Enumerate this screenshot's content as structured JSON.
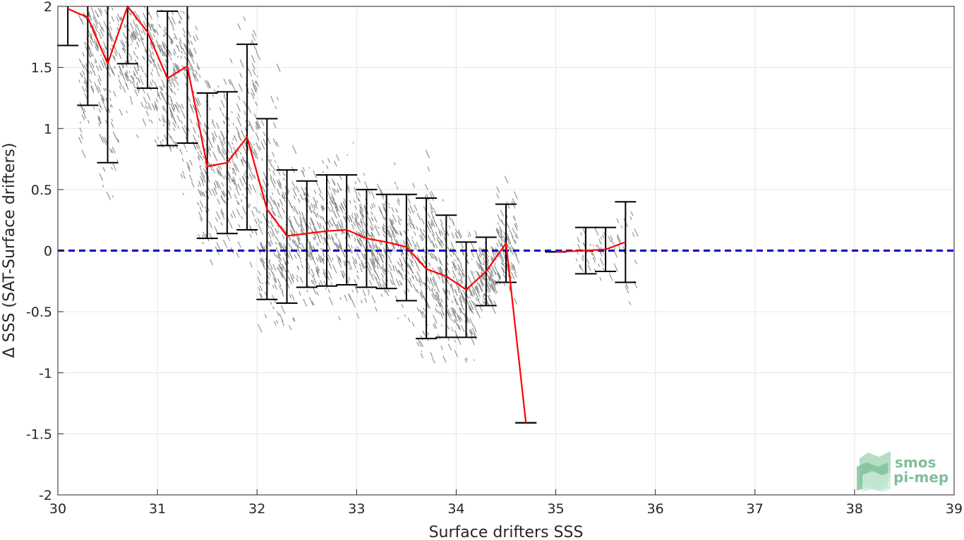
{
  "chart_data": {
    "type": "scatter",
    "title": "",
    "xlabel": "Surface drifters SSS",
    "ylabel": "Δ SSS (SAT-Surface drifters)",
    "xlim": [
      30,
      39
    ],
    "ylim": [
      -2,
      2
    ],
    "xticks": [
      "30",
      "31",
      "32",
      "33",
      "34",
      "35",
      "36",
      "37",
      "38",
      "39"
    ],
    "yticks": [
      "-2",
      "-1.5",
      "-1",
      "-0.5",
      "0",
      "0.5",
      "1",
      "1.5",
      "2"
    ],
    "grid": true,
    "zero_line": {
      "y": 0,
      "color": "#0000cc",
      "style": "dashed"
    },
    "scatter_color": "#8c8c8c",
    "series": [
      {
        "type": "line-errorbar",
        "color": "#ff0000",
        "errorbar_color": "#000000",
        "segments": [
          [
            {
              "x": 30.1,
              "y": 1.98,
              "lo": 1.68,
              "hi": 2.5
            },
            {
              "x": 30.3,
              "y": 1.91,
              "lo": 1.19,
              "hi": 2.5
            },
            {
              "x": 30.5,
              "y": 1.53,
              "lo": 0.72,
              "hi": 2.5
            },
            {
              "x": 30.7,
              "y": 2.02,
              "lo": 1.53,
              "hi": 2.5
            },
            {
              "x": 30.9,
              "y": 1.79,
              "lo": 1.33,
              "hi": 2.5
            },
            {
              "x": 31.1,
              "y": 1.41,
              "lo": 0.86,
              "hi": 1.96
            },
            {
              "x": 31.3,
              "y": 1.51,
              "lo": 0.88,
              "hi": 2.5
            },
            {
              "x": 31.5,
              "y": 0.69,
              "lo": 0.1,
              "hi": 1.29
            },
            {
              "x": 31.7,
              "y": 0.72,
              "lo": 0.14,
              "hi": 1.3
            },
            {
              "x": 31.9,
              "y": 0.93,
              "lo": 0.17,
              "hi": 1.69
            },
            {
              "x": 32.1,
              "y": 0.34,
              "lo": -0.4,
              "hi": 1.08
            },
            {
              "x": 32.3,
              "y": 0.12,
              "lo": -0.43,
              "hi": 0.66
            },
            {
              "x": 32.5,
              "y": 0.14,
              "lo": -0.3,
              "hi": 0.57
            },
            {
              "x": 32.7,
              "y": 0.16,
              "lo": -0.29,
              "hi": 0.62
            },
            {
              "x": 32.9,
              "y": 0.17,
              "lo": -0.28,
              "hi": 0.62
            },
            {
              "x": 33.1,
              "y": 0.1,
              "lo": -0.3,
              "hi": 0.5
            },
            {
              "x": 33.3,
              "y": 0.07,
              "lo": -0.31,
              "hi": 0.46
            },
            {
              "x": 33.5,
              "y": 0.03,
              "lo": -0.41,
              "hi": 0.46
            },
            {
              "x": 33.7,
              "y": -0.15,
              "lo": -0.72,
              "hi": 0.43
            },
            {
              "x": 33.9,
              "y": -0.21,
              "lo": -0.71,
              "hi": 0.29
            },
            {
              "x": 34.1,
              "y": -0.32,
              "lo": -0.71,
              "hi": 0.07
            },
            {
              "x": 34.3,
              "y": -0.17,
              "lo": -0.45,
              "hi": 0.11
            },
            {
              "x": 34.5,
              "y": 0.06,
              "lo": -0.26,
              "hi": 0.38
            },
            {
              "x": 34.7,
              "y": -1.41,
              "lo": -1.41,
              "hi": -1.41
            }
          ],
          [
            {
              "x": 35.0,
              "y": -0.01,
              "lo": -0.01,
              "hi": -0.01
            },
            {
              "x": 35.3,
              "y": 0.0,
              "lo": -0.19,
              "hi": 0.19
            },
            {
              "x": 35.5,
              "y": 0.01,
              "lo": -0.17,
              "hi": 0.19
            },
            {
              "x": 35.7,
              "y": 0.07,
              "lo": -0.26,
              "hi": 0.4
            }
          ]
        ]
      }
    ]
  },
  "logo": {
    "line1": "smos",
    "line2": "pi-mep",
    "color": "#7fbf99"
  }
}
